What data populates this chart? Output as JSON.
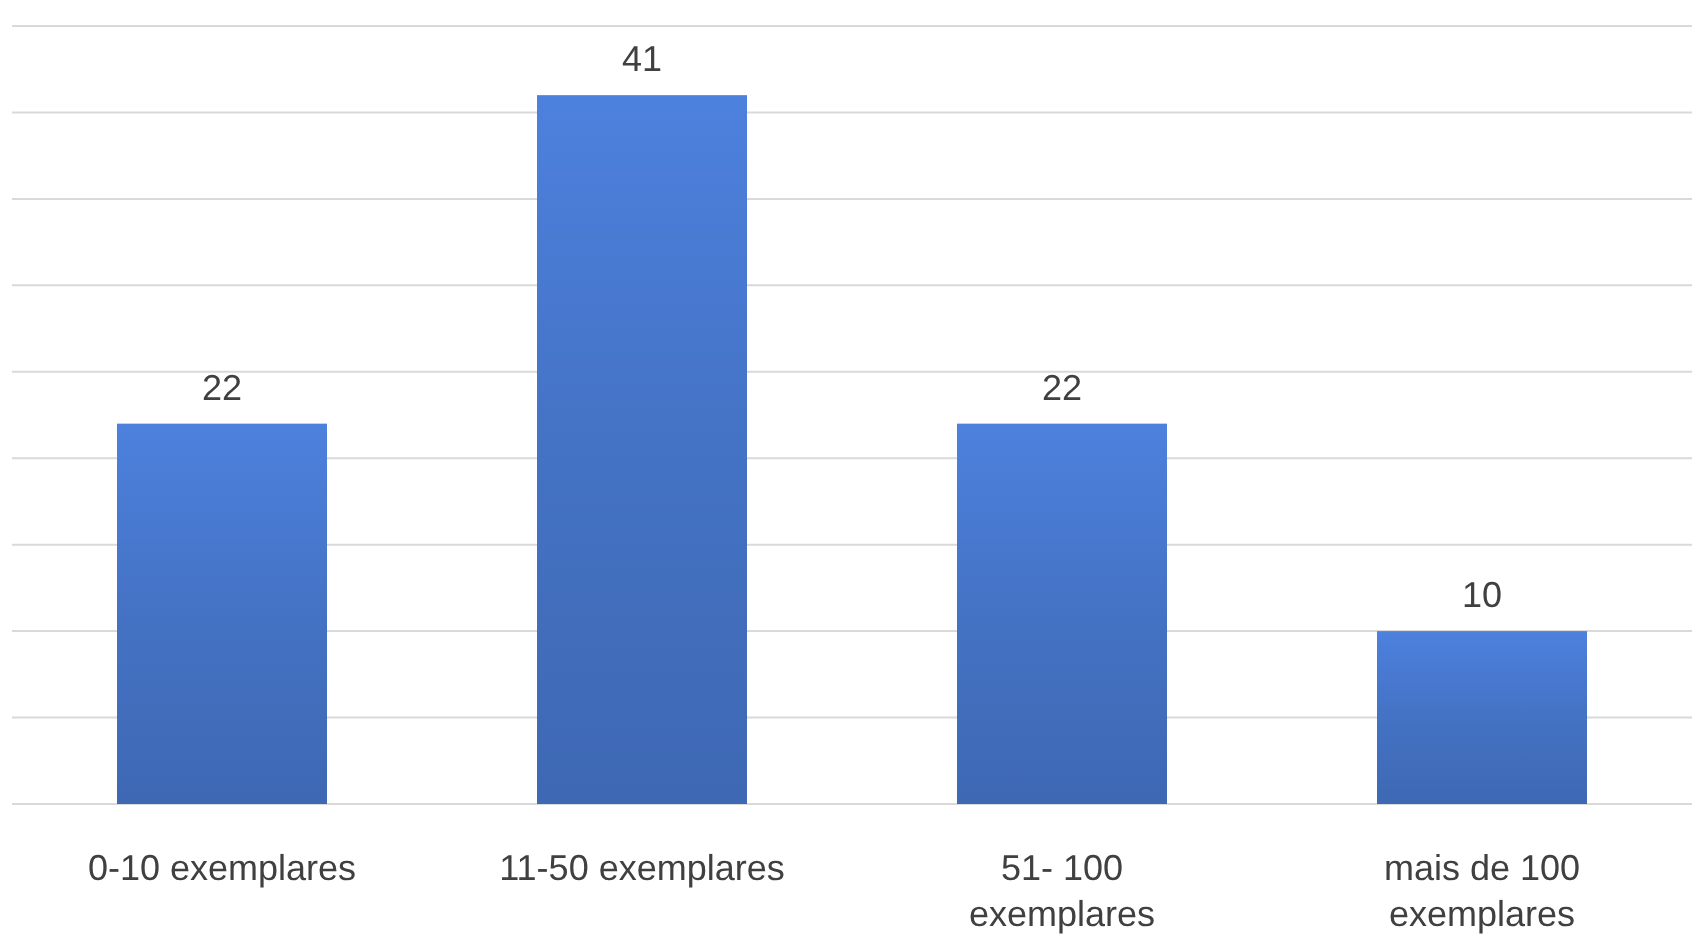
{
  "chart_data": {
    "type": "bar",
    "categories": [
      "0-10 exemplares",
      "11-50 exemplares",
      "51- 100 exemplares",
      "mais de 100 exemplares"
    ],
    "values": [
      22,
      41,
      22,
      10
    ],
    "color": "#4472c4",
    "ylim": [
      0,
      45
    ],
    "yticks": [
      {
        "value": 0,
        "label": null
      },
      {
        "value": 5,
        "label": null
      },
      {
        "value": 10,
        "label": null
      },
      {
        "value": 15,
        "label": null
      },
      {
        "value": 20,
        "label": null
      },
      {
        "value": 25,
        "label": null
      },
      {
        "value": 30,
        "label": null
      },
      {
        "value": 35,
        "label": null
      },
      {
        "value": 40,
        "label": null
      },
      {
        "value": 45,
        "label": null
      }
    ],
    "grid": "y",
    "tick_labels": "x",
    "data_labels": true
  }
}
